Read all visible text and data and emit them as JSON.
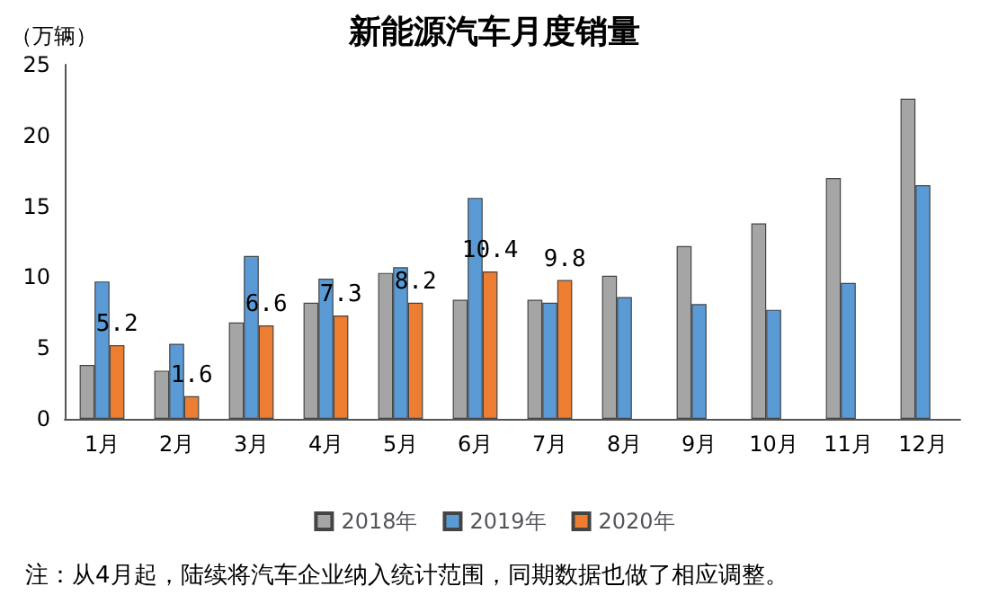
{
  "chart_data": {
    "type": "bar",
    "title": "新能源汽车月度销量",
    "ylabel": "（万辆）",
    "categories": [
      "1月",
      "2月",
      "3月",
      "4月",
      "5月",
      "6月",
      "7月",
      "8月",
      "9月",
      "10月",
      "11月",
      "12月"
    ],
    "series": [
      {
        "name": "2018年",
        "color": "#a5a5a5",
        "values": [
          3.8,
          3.4,
          6.8,
          8.2,
          10.3,
          8.4,
          8.4,
          10.1,
          12.2,
          13.8,
          17.0,
          22.6
        ]
      },
      {
        "name": "2019年",
        "color": "#5b9bd5",
        "values": [
          9.7,
          5.3,
          11.5,
          9.9,
          10.7,
          15.6,
          8.2,
          8.6,
          8.1,
          7.7,
          9.6,
          16.5
        ]
      },
      {
        "name": "2020年",
        "color": "#ed7d31",
        "values": [
          5.2,
          1.6,
          6.6,
          7.3,
          8.2,
          10.4,
          9.8,
          null,
          null,
          null,
          null,
          null
        ],
        "value_labels": [
          "5.2",
          "1.6",
          "6.6",
          "7.3",
          "8.2",
          "10.4",
          "9.8",
          null,
          null,
          null,
          null,
          null
        ]
      }
    ],
    "ylim": [
      0,
      25
    ],
    "yticks": [
      0,
      5,
      10,
      15,
      20,
      25
    ],
    "grid": false,
    "legend": "bottom",
    "annotations": [
      "注：从4月起，陆续将汽车企业纳入统计范围，同期数据也做了相应调整。"
    ]
  }
}
